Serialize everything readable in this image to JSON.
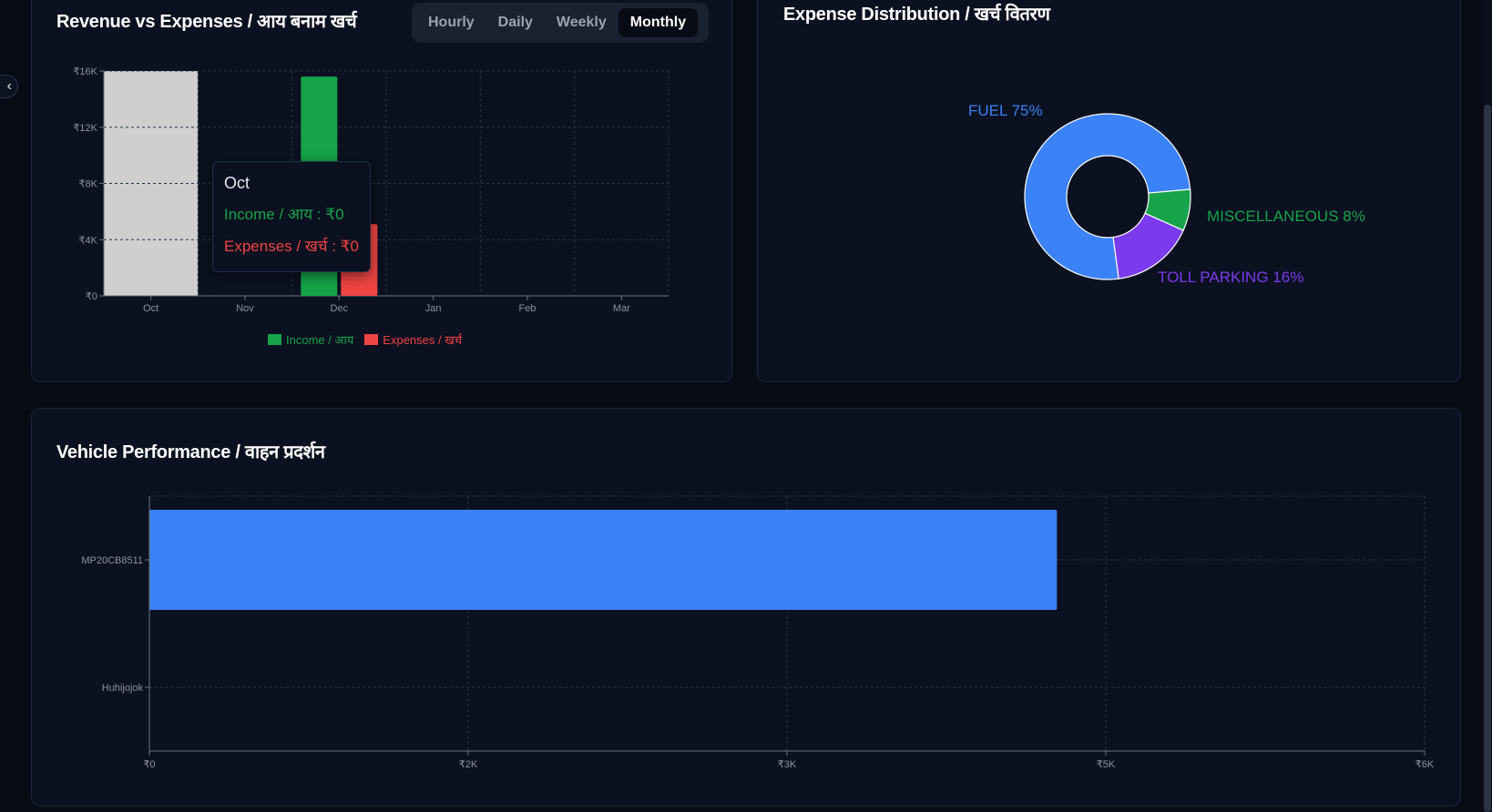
{
  "revenue_card": {
    "title": "Revenue vs Expenses / आय बनाम खर्च",
    "tabs": [
      {
        "label": "Hourly",
        "active": false
      },
      {
        "label": "Daily",
        "active": false
      },
      {
        "label": "Weekly",
        "active": false
      },
      {
        "label": "Monthly",
        "active": true
      }
    ],
    "tooltip": {
      "title": "Oct",
      "income_line": "Income / आय : ₹0",
      "expense_line": "Expenses / खर्च : ₹0"
    }
  },
  "expense_card": {
    "title": "Expense Distribution / खर्च वितरण"
  },
  "vehicle_card": {
    "title": "Vehicle Performance / वाहन प्रदर्शन"
  },
  "colors": {
    "income": "#16a34a",
    "expenses": "#ef4444",
    "fuel": "#3b82f6",
    "misc": "#16a34a",
    "toll": "#7c3aed",
    "vehicle_bar": "#3b82f6",
    "hover_band": "#cfcfcf"
  },
  "chart_data": [
    {
      "type": "bar",
      "categories": [
        "Oct",
        "Nov",
        "Dec",
        "Jan",
        "Feb",
        "Mar"
      ],
      "series": [
        {
          "name": "Income / आय",
          "values": [
            0,
            0,
            15600,
            0,
            0,
            0
          ]
        },
        {
          "name": "Expenses / खर्च",
          "values": [
            0,
            0,
            5100,
            0,
            0,
            0
          ]
        }
      ],
      "yticks": [
        "₹0",
        "₹4K",
        "₹8K",
        "₹12K",
        "₹16K"
      ],
      "ylim": [
        0,
        16000
      ],
      "grid": true,
      "legend": "bottom",
      "hovered_category": "Oct"
    },
    {
      "type": "pie",
      "donut": true,
      "slices": [
        {
          "label": "FUEL",
          "pct_label": "FUEL 75%",
          "value": 75
        },
        {
          "label": "MISCELLANEOUS",
          "pct_label": "MISCELLANEOUS 8%",
          "value": 8
        },
        {
          "label": "TOLL PARKING",
          "pct_label": "TOLL PARKING 16%",
          "value": 16
        }
      ]
    },
    {
      "type": "bar",
      "orientation": "horizontal",
      "categories": [
        "MP20CB8511",
        "Huhijojok"
      ],
      "values": [
        4270,
        0
      ],
      "xticks": [
        "₹0",
        "₹2K",
        "₹3K",
        "₹5K",
        "₹6K"
      ],
      "xlim": [
        0,
        6000
      ],
      "grid": true
    }
  ]
}
